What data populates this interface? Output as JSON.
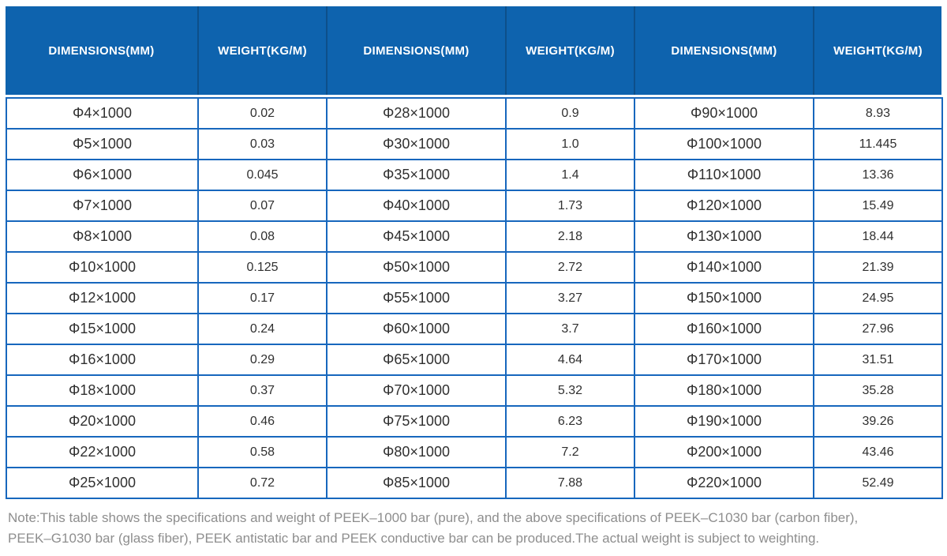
{
  "table": {
    "headers": [
      "DIMENSIONS(MM)",
      "WEIGHT(KG/M)",
      "DIMENSIONS(MM)",
      "WEIGHT(KG/M)",
      "DIMENSIONS(MM)",
      "WEIGHT(KG/M)"
    ],
    "rows": [
      [
        "Φ4×1000",
        "0.02",
        "Φ28×1000",
        "0.9",
        "Φ90×1000",
        "8.93"
      ],
      [
        "Φ5×1000",
        "0.03",
        "Φ30×1000",
        "1.0",
        "Φ100×1000",
        "11.445"
      ],
      [
        "Φ6×1000",
        "0.045",
        "Φ35×1000",
        "1.4",
        "Φ110×1000",
        "13.36"
      ],
      [
        "Φ7×1000",
        "0.07",
        "Φ40×1000",
        "1.73",
        "Φ120×1000",
        "15.49"
      ],
      [
        "Φ8×1000",
        "0.08",
        "Φ45×1000",
        "2.18",
        "Φ130×1000",
        "18.44"
      ],
      [
        "Φ10×1000",
        "0.125",
        "Φ50×1000",
        "2.72",
        "Φ140×1000",
        "21.39"
      ],
      [
        "Φ12×1000",
        "0.17",
        "Φ55×1000",
        "3.27",
        "Φ150×1000",
        "24.95"
      ],
      [
        "Φ15×1000",
        "0.24",
        "Φ60×1000",
        "3.7",
        "Φ160×1000",
        "27.96"
      ],
      [
        "Φ16×1000",
        "0.29",
        "Φ65×1000",
        "4.64",
        "Φ170×1000",
        "31.51"
      ],
      [
        "Φ18×1000",
        "0.37",
        "Φ70×1000",
        "5.32",
        "Φ180×1000",
        "35.28"
      ],
      [
        "Φ20×1000",
        "0.46",
        "Φ75×1000",
        "6.23",
        "Φ190×1000",
        "39.26"
      ],
      [
        "Φ22×1000",
        "0.58",
        "Φ80×1000",
        "7.2",
        "Φ200×1000",
        "43.46"
      ],
      [
        "Φ25×1000",
        "0.72",
        "Φ85×1000",
        "7.88",
        "Φ220×1000",
        "52.49"
      ]
    ]
  },
  "note": {
    "line1": "Note:This table shows the specifications and weight of PEEK–1000 bar (pure), and the above specifications of PEEK–C1030 bar (carbon fiber),",
    "line2": "PEEK–G1030 bar (glass fiber), PEEK antistatic bar and PEEK conductive bar can be produced.The actual weight is subject to weighting."
  },
  "colors": {
    "header_background": "#0e63ae",
    "header_separator": "#0d4f8a",
    "grid_border": "#1767bd",
    "cell_text": "#303030",
    "note_text": "#8e8e8e"
  }
}
